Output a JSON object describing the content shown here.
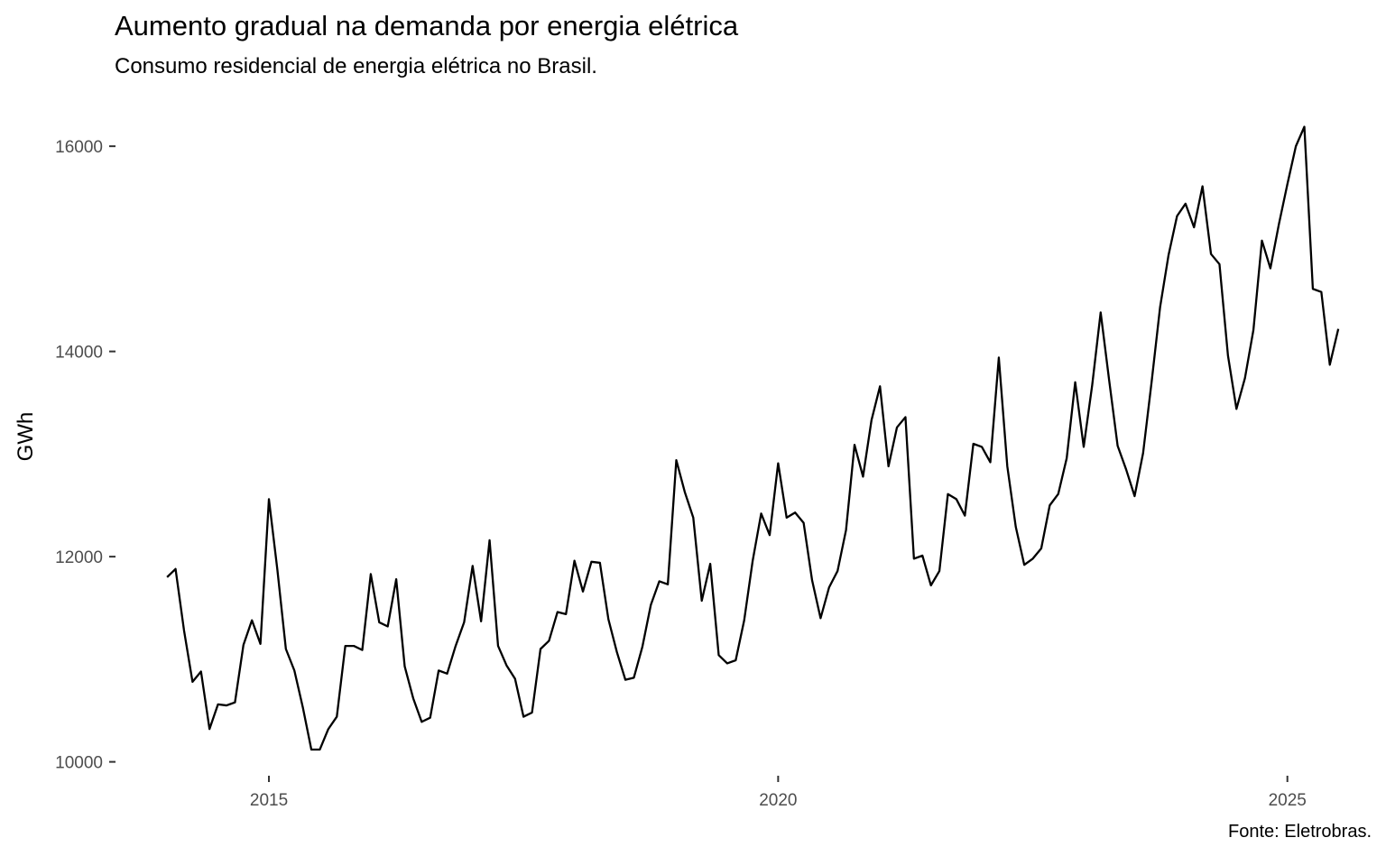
{
  "chart_data": {
    "type": "line",
    "title": "Aumento gradual na demanda por energia elétrica",
    "subtitle": "Consumo residencial de energia elétrica no Brasil.",
    "caption": "Fonte: Eletrobras.",
    "xlabel": "",
    "ylabel": "GWh",
    "x_start": "2014-01",
    "x_frequency": "monthly",
    "xlim": [
      2013.6,
      2025.8
    ],
    "ylim": [
      9900,
      16300
    ],
    "x_ticks": [
      2015,
      2020,
      2025
    ],
    "x_tick_labels": [
      "2015",
      "2020",
      "2025"
    ],
    "y_ticks": [
      10000,
      12000,
      14000,
      16000
    ],
    "y_tick_labels": [
      "10000",
      "12000",
      "14000",
      "16000"
    ],
    "grid": false,
    "line_color": "#000000",
    "values": [
      11800,
      11880,
      11280,
      10780,
      10880,
      10320,
      10560,
      10550,
      10580,
      11140,
      11380,
      11150,
      12560,
      11870,
      11100,
      10890,
      10530,
      10120,
      10120,
      10320,
      10440,
      11130,
      11130,
      11090,
      11830,
      11360,
      11320,
      11780,
      10930,
      10620,
      10390,
      10430,
      10890,
      10860,
      11130,
      11360,
      11910,
      11370,
      12160,
      11130,
      10940,
      10810,
      10440,
      10480,
      11100,
      11180,
      11460,
      11440,
      11960,
      11660,
      11950,
      11940,
      11390,
      11070,
      10800,
      10820,
      11120,
      11530,
      11760,
      11730,
      12940,
      12630,
      12380,
      11570,
      11930,
      11040,
      10960,
      10990,
      11380,
      11960,
      12420,
      12210,
      12910,
      12380,
      12430,
      12330,
      11770,
      11400,
      11700,
      11860,
      12260,
      13090,
      12780,
      13330,
      13660,
      12880,
      13260,
      13360,
      11980,
      12010,
      11720,
      11860,
      12610,
      12560,
      12400,
      13100,
      13070,
      12920,
      13940,
      12880,
      12290,
      11920,
      11980,
      12080,
      12500,
      12610,
      12960,
      13700,
      13070,
      13670,
      14380,
      13720,
      13080,
      12850,
      12590,
      13010,
      13700,
      14430,
      14940,
      15320,
      15440,
      15210,
      15610,
      14950,
      14850,
      13960,
      13440,
      13740,
      14210,
      15080,
      14810,
      15240,
      15630,
      16000,
      16190,
      14610,
      14580,
      13870,
      14220
    ]
  }
}
